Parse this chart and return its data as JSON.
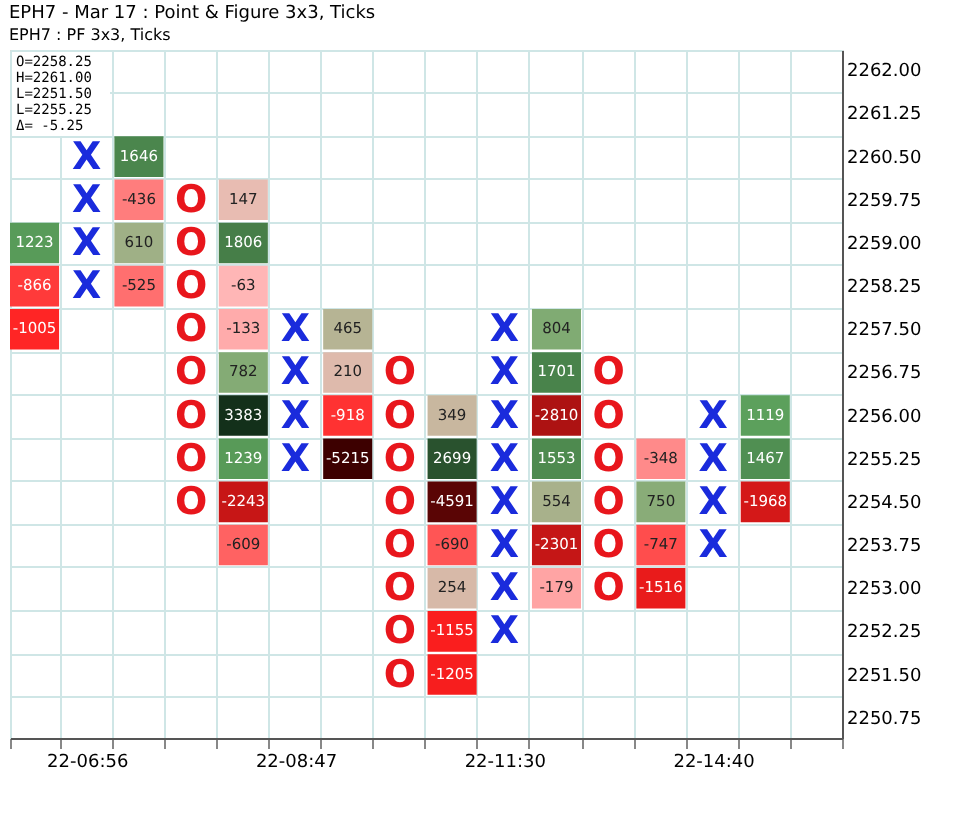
{
  "chart_data": {
    "type": "heatmap",
    "title": "EPH7 - Mar 17 : Point & Figure 3x3, Ticks",
    "subtitle": "EPH7 : PF 3x3, Ticks",
    "annotations": [
      "O=2258.25",
      "H=2261.00",
      "L=2251.50",
      "L=2255.25",
      "Δ=   -5.25"
    ],
    "categories": [
      null,
      "22-06:56",
      null,
      null,
      null,
      "22-08:47",
      null,
      null,
      null,
      "22-11:30",
      null,
      null,
      null,
      "22-14:40",
      null,
      null
    ],
    "y_categories": [
      "2262.00",
      "2261.25",
      "2260.50",
      "2259.75",
      "2259.00",
      "2258.25",
      "2257.50",
      "2256.75",
      "2256.00",
      "2255.25",
      "2254.50",
      "2253.75",
      "2253.00",
      "2252.25",
      "2251.50",
      "2250.75"
    ],
    "cells": [
      [
        null,
        null,
        null,
        null,
        null,
        null,
        null,
        null,
        null,
        null,
        null,
        null,
        null,
        null,
        null,
        null
      ],
      [
        null,
        null,
        null,
        null,
        null,
        null,
        null,
        null,
        null,
        null,
        null,
        null,
        null,
        null,
        null,
        null
      ],
      [
        null,
        null,
        1646,
        null,
        null,
        null,
        null,
        null,
        null,
        null,
        null,
        null,
        null,
        null,
        null,
        null
      ],
      [
        null,
        null,
        -436,
        null,
        147,
        null,
        null,
        null,
        null,
        null,
        null,
        null,
        null,
        null,
        null,
        null
      ],
      [
        1223,
        null,
        610,
        null,
        1806,
        null,
        null,
        null,
        null,
        null,
        null,
        null,
        null,
        null,
        null,
        null
      ],
      [
        -866,
        null,
        -525,
        null,
        -63,
        null,
        null,
        null,
        null,
        null,
        null,
        null,
        null,
        null,
        null,
        null
      ],
      [
        -1005,
        null,
        null,
        null,
        -133,
        null,
        465,
        null,
        null,
        null,
        804,
        null,
        null,
        null,
        null,
        null
      ],
      [
        null,
        null,
        null,
        null,
        782,
        null,
        210,
        null,
        null,
        null,
        1701,
        null,
        null,
        null,
        null,
        null
      ],
      [
        null,
        null,
        null,
        null,
        3383,
        null,
        -918,
        null,
        349,
        null,
        -2810,
        null,
        null,
        null,
        1119,
        null
      ],
      [
        null,
        null,
        null,
        null,
        1239,
        null,
        -5215,
        null,
        2699,
        null,
        1553,
        null,
        -348,
        null,
        1467,
        null
      ],
      [
        null,
        null,
        null,
        null,
        -2243,
        null,
        null,
        null,
        -4591,
        null,
        554,
        null,
        750,
        null,
        -1968,
        null
      ],
      [
        null,
        null,
        null,
        null,
        -609,
        null,
        null,
        null,
        -690,
        null,
        -2301,
        null,
        -747,
        null,
        null,
        null
      ],
      [
        null,
        null,
        null,
        null,
        null,
        null,
        null,
        null,
        254,
        null,
        -179,
        null,
        -1516,
        null,
        null,
        null
      ],
      [
        null,
        null,
        null,
        null,
        null,
        null,
        null,
        null,
        -1155,
        null,
        null,
        null,
        null,
        null,
        null,
        null
      ],
      [
        null,
        null,
        null,
        null,
        null,
        null,
        null,
        null,
        -1205,
        null,
        null,
        null,
        null,
        null,
        null,
        null
      ],
      [
        null,
        null,
        null,
        null,
        null,
        null,
        null,
        null,
        null,
        null,
        null,
        null,
        null,
        null,
        null,
        null
      ]
    ],
    "cell_labels": [
      [
        null,
        null,
        null,
        null,
        null,
        null,
        null,
        null,
        null,
        null,
        null,
        null,
        null,
        null,
        null,
        null
      ],
      [
        null,
        null,
        null,
        null,
        null,
        null,
        null,
        null,
        null,
        null,
        null,
        null,
        null,
        null,
        null,
        null
      ],
      [
        null,
        "X",
        "1646",
        null,
        null,
        null,
        null,
        null,
        null,
        null,
        null,
        null,
        null,
        null,
        null,
        null
      ],
      [
        null,
        "X",
        "-436",
        "O",
        "147",
        null,
        null,
        null,
        null,
        null,
        null,
        null,
        null,
        null,
        null,
        null
      ],
      [
        "1223",
        "X",
        "610",
        "O",
        "1806",
        null,
        null,
        null,
        null,
        null,
        null,
        null,
        null,
        null,
        null,
        null
      ],
      [
        "-866",
        "X",
        "-525",
        "O",
        "-63",
        null,
        null,
        null,
        null,
        null,
        null,
        null,
        null,
        null,
        null,
        null
      ],
      [
        "-1005",
        null,
        null,
        "O",
        "-133",
        "X",
        "465",
        null,
        null,
        "X",
        "804",
        null,
        null,
        null,
        null,
        null
      ],
      [
        null,
        null,
        null,
        "O",
        "782",
        "X",
        "210",
        "O",
        null,
        "X",
        "1701",
        "O",
        null,
        null,
        null,
        null
      ],
      [
        null,
        null,
        null,
        "O",
        "3383",
        "X",
        "-918",
        "O",
        "349",
        "X",
        "-2810",
        "O",
        null,
        "X",
        "1119",
        null
      ],
      [
        null,
        null,
        null,
        "O",
        "1239",
        "X",
        "-5215",
        "O",
        "2699",
        "X",
        "1553",
        "O",
        "-348",
        "X",
        "1467",
        null
      ],
      [
        null,
        null,
        null,
        "O",
        "-2243",
        null,
        null,
        "O",
        "-4591",
        "X",
        "554",
        "O",
        "750",
        "X",
        "-1968",
        null
      ],
      [
        null,
        null,
        null,
        null,
        "-609",
        null,
        null,
        "O",
        "-690",
        "X",
        "-2301",
        "O",
        "-747",
        "X",
        null,
        null
      ],
      [
        null,
        null,
        null,
        null,
        null,
        null,
        null,
        "O",
        "254",
        "X",
        "-179",
        "O",
        "-1516",
        null,
        null,
        null
      ],
      [
        null,
        null,
        null,
        null,
        null,
        null,
        null,
        "O",
        "-1155",
        "X",
        null,
        null,
        null,
        null,
        null,
        null
      ],
      [
        null,
        null,
        null,
        null,
        null,
        null,
        null,
        "O",
        "-1205",
        null,
        null,
        null,
        null,
        null,
        null,
        null
      ],
      [
        null,
        null,
        null,
        null,
        null,
        null,
        null,
        null,
        null,
        null,
        null,
        null,
        null,
        null,
        null,
        null
      ]
    ],
    "colors": [
      null,
      "#1a2bdc",
      null,
      "#e8161c",
      null,
      "#1a2bdc",
      null,
      "#e8161c",
      null,
      "#1a2bdc",
      null,
      "#e8161c",
      null,
      "#1a2bdc",
      null,
      null
    ],
    "data_labels": true,
    "grid": true
  }
}
